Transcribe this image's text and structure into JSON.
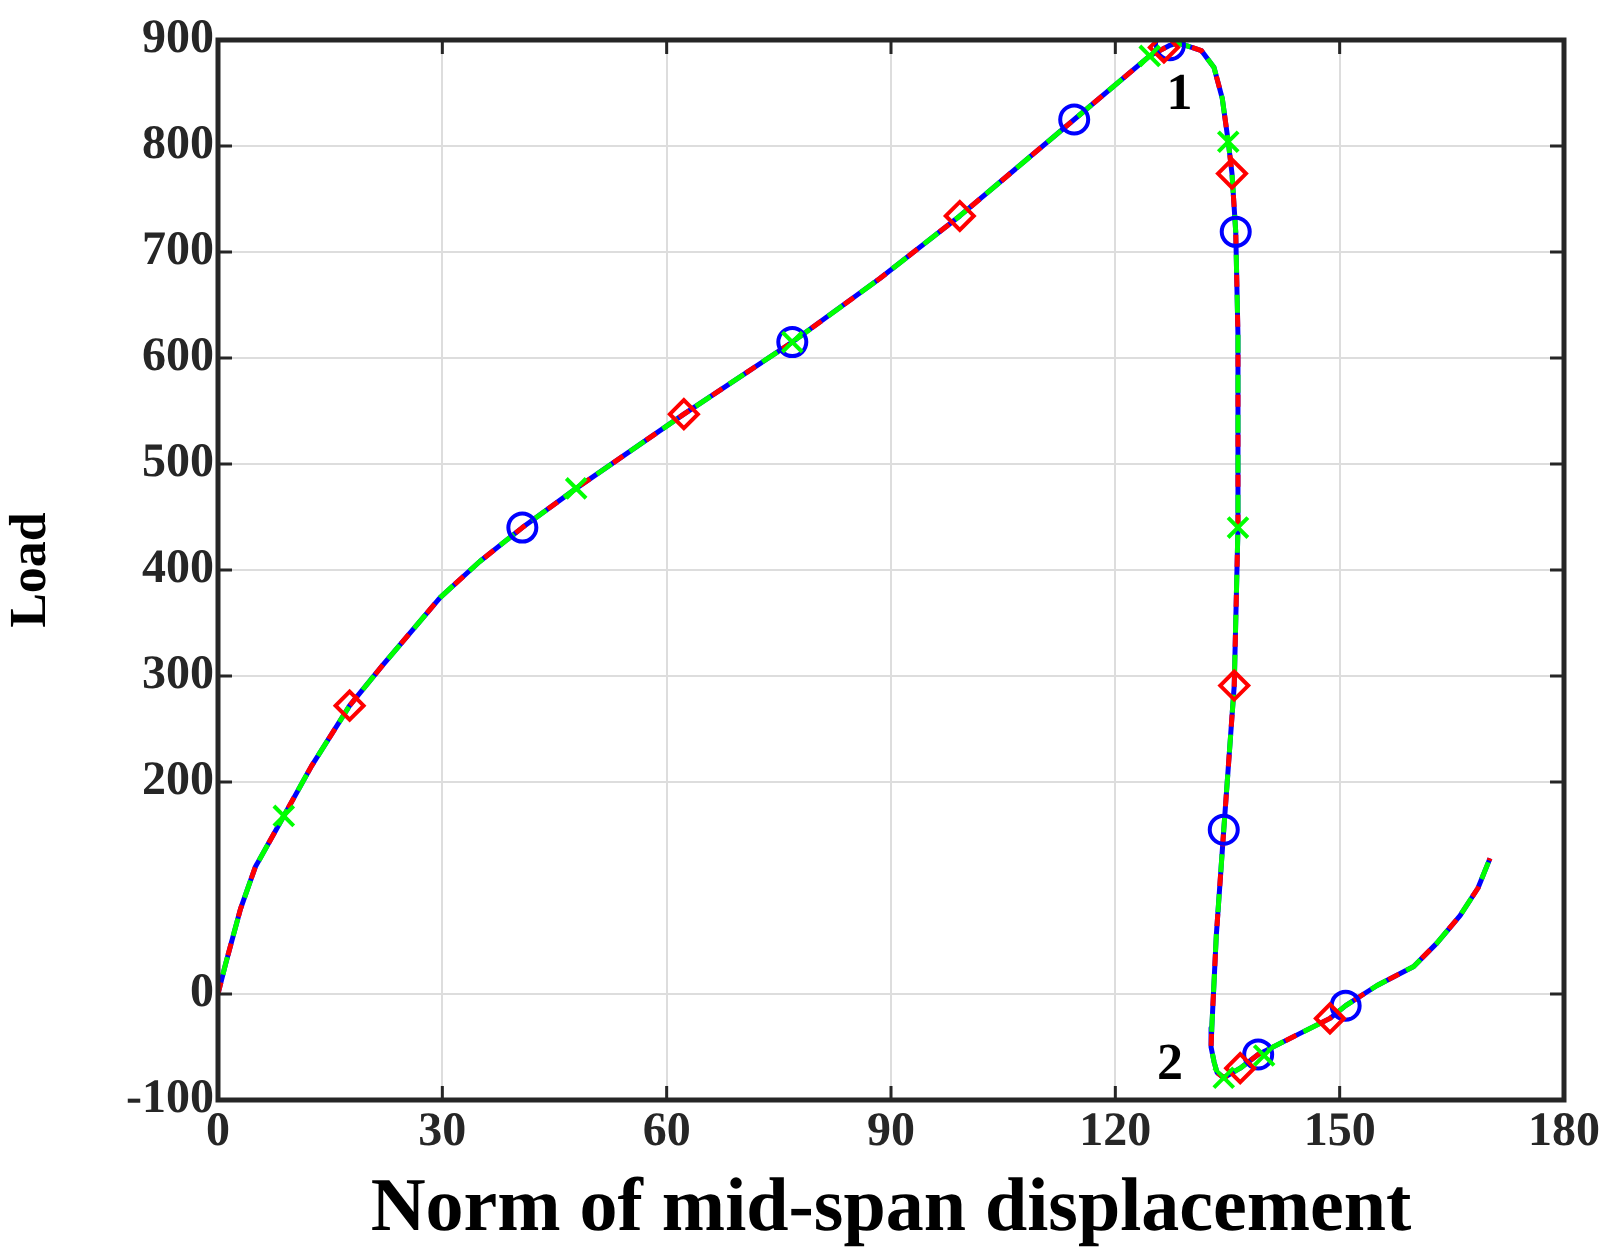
{
  "chart_data": {
    "type": "line",
    "xlabel": "Norm of mid-span displacement",
    "ylabel": "Load",
    "xlim": [
      0,
      180
    ],
    "xticks": [
      0,
      30,
      60,
      90,
      120,
      150,
      180
    ],
    "ylim": [
      -100,
      900
    ],
    "yticks": [
      -100,
      0,
      200,
      300,
      400,
      500,
      600,
      700,
      800,
      900
    ],
    "grid": true,
    "series": [
      {
        "type": "line",
        "color": "#0000ff",
        "line_style": "solid",
        "marker": "none",
        "x": [
          0,
          1,
          3,
          5,
          8.8,
          12.5,
          17.6,
          22,
          29.7,
          35,
          40.7,
          47.9,
          62.3,
          76.8,
          88.5,
          99.2,
          114.5,
          124.6,
          127.3,
          128.3,
          129.4,
          131.5,
          133.2,
          134.3,
          135.1,
          135.6,
          136.1,
          136.4,
          136.4,
          135.9,
          134.5,
          133.5,
          132.9,
          132.8,
          133.2,
          133.6,
          134.5,
          136.7,
          139.1,
          148.7,
          150.8,
          155,
          159.9,
          163,
          166.1,
          168.5,
          170.1
        ],
        "values": [
          0,
          28,
          80,
          120,
          168,
          215,
          272,
          310,
          374,
          408,
          440,
          477,
          547,
          615,
          675,
          734,
          825,
          885,
          895,
          897,
          895,
          890,
          874,
          845,
          804,
          774,
          719,
          621,
          440,
          291,
          155,
          55,
          -32,
          -50,
          -64,
          -74,
          -79,
          -70,
          -57,
          -23,
          -11,
          8,
          26,
          48,
          74,
          100,
          128
        ]
      },
      {
        "type": "line",
        "color": "#ff0000",
        "line_style": "dashed",
        "marker": "none",
        "x": [
          0,
          1,
          3,
          5,
          8.8,
          12.5,
          17.6,
          22,
          29.7,
          35,
          40.7,
          47.9,
          62.3,
          76.8,
          88.5,
          99.2,
          114.5,
          124.6,
          127.3,
          128.3,
          129.4,
          131.5,
          133.2,
          134.3,
          135.1,
          135.6,
          136.1,
          136.4,
          136.4,
          135.9,
          134.5,
          133.5,
          132.9,
          132.8,
          133.2,
          133.6,
          134.5,
          136.7,
          139.1,
          148.7,
          150.8,
          155,
          159.9,
          163,
          166.1,
          168.5,
          170.1
        ],
        "values": [
          0,
          28,
          80,
          120,
          168,
          215,
          272,
          310,
          374,
          408,
          440,
          477,
          547,
          615,
          675,
          734,
          825,
          885,
          895,
          897,
          895,
          890,
          874,
          845,
          804,
          774,
          719,
          621,
          440,
          291,
          155,
          55,
          -32,
          -50,
          -64,
          -74,
          -79,
          -70,
          -57,
          -23,
          -11,
          8,
          26,
          48,
          74,
          100,
          128
        ]
      },
      {
        "type": "line",
        "color": "#00ff00",
        "line_style": "dashed",
        "marker": "none",
        "x": [
          0,
          1,
          3,
          5,
          8.8,
          12.5,
          17.6,
          22,
          29.7,
          35,
          40.7,
          47.9,
          62.3,
          76.8,
          88.5,
          99.2,
          114.5,
          124.6,
          127.3,
          128.3,
          129.4,
          131.5,
          133.2,
          134.3,
          135.1,
          135.6,
          136.1,
          136.4,
          136.4,
          135.9,
          134.5,
          133.5,
          132.9,
          132.8,
          133.2,
          133.6,
          134.5,
          136.7,
          139.1,
          148.7,
          150.8,
          155,
          159.9,
          163,
          166.1,
          168.5,
          170.1
        ],
        "values": [
          0,
          28,
          80,
          120,
          168,
          215,
          272,
          310,
          374,
          408,
          440,
          477,
          547,
          615,
          675,
          734,
          825,
          885,
          895,
          897,
          895,
          890,
          874,
          845,
          804,
          774,
          719,
          621,
          440,
          291,
          155,
          55,
          -32,
          -50,
          -64,
          -74,
          -79,
          -70,
          -57,
          -23,
          -11,
          8,
          26,
          48,
          74,
          100,
          128
        ]
      },
      {
        "type": "scatter",
        "color": "#0000ff",
        "marker": "circle",
        "x": [
          40.7,
          76.8,
          114.5,
          127.3,
          136.1,
          134.5,
          139.1,
          150.8
        ],
        "values": [
          440,
          615,
          825,
          895,
          719,
          155,
          -57,
          -11
        ]
      },
      {
        "type": "scatter",
        "color": "#ff0000",
        "marker": "diamond",
        "x": [
          17.6,
          62.3,
          99.2,
          126.5,
          135.6,
          135.9,
          136.7,
          148.7
        ],
        "values": [
          272,
          547,
          734,
          893,
          774,
          291,
          -70,
          -23
        ]
      },
      {
        "type": "scatter",
        "color": "#00ff00",
        "marker": "cross",
        "x": [
          8.8,
          47.9,
          76.8,
          124.6,
          135.1,
          136.4,
          134.5,
          139.9
        ],
        "values": [
          168,
          477,
          615,
          885,
          804,
          440,
          -79,
          -58
        ]
      }
    ],
    "annotations": [
      {
        "text": "1",
        "x": 129.4,
        "y": 895
      },
      {
        "text": "2",
        "x": 133.2,
        "y": -64
      }
    ]
  }
}
